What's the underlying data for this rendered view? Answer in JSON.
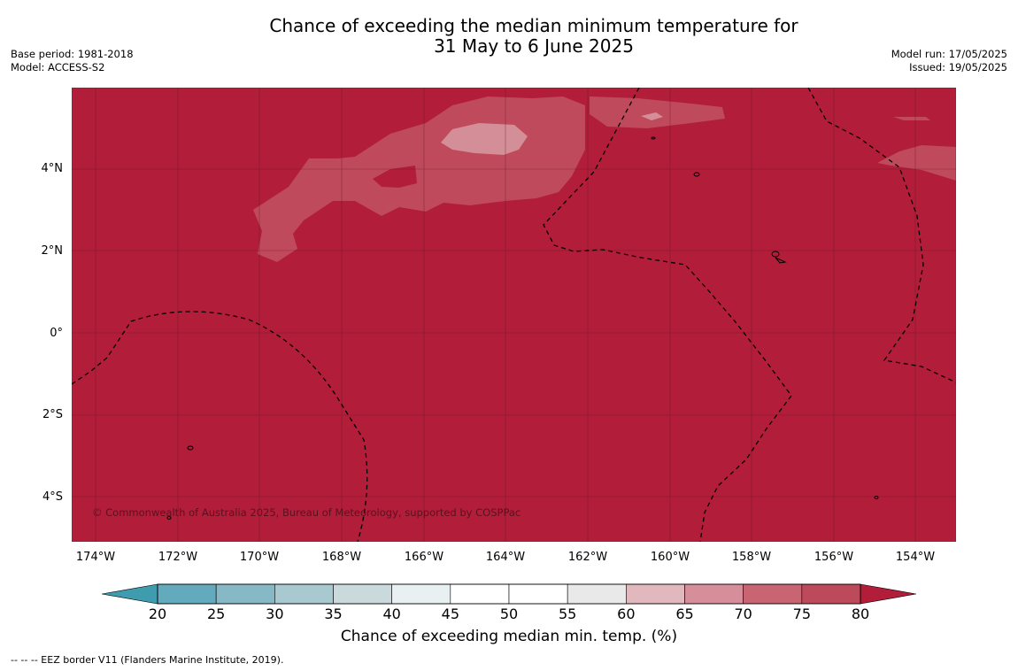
{
  "title_line1": "Chance of exceeding the median minimum temperature for",
  "title_line2": "31 May to 6 June 2025",
  "meta_left": [
    "Base period: 1981-2018",
    "Model: ACCESS-S2"
  ],
  "meta_right": [
    "Model run: 17/05/2025",
    "Issued: 19/05/2025"
  ],
  "lat_labels": [
    "4°N",
    "2°N",
    "0°",
    "2°S",
    "4°S"
  ],
  "lon_labels": [
    "174°W",
    "172°W",
    "170°W",
    "168°W",
    "166°W",
    "164°W",
    "162°W",
    "160°W",
    "158°W",
    "156°W",
    "154°W"
  ],
  "copyright": "© Commonwealth of Australia 2025, Bureau of Meteorology, supported by COSPPac",
  "colorbar": {
    "ticks": [
      "20",
      "25",
      "30",
      "35",
      "40",
      "45",
      "50",
      "55",
      "60",
      "65",
      "70",
      "75",
      "80"
    ],
    "colors": [
      "#63aabd",
      "#86b8c5",
      "#a8c9cf",
      "#cad9dc",
      "#e8f0f1",
      "#ffffff",
      "#ffffff",
      "#e9e9e9",
      "#e2b8bf",
      "#d68e9a",
      "#c96573",
      "#bd4a5a"
    ],
    "low_color": "#3f9cae",
    "high_color": "#b21d3a",
    "label": "Chance of exceeding median min. temp. (%)"
  },
  "footer": "--  --  -- EEZ border V11 (Flanders Marine Institute, 2019).",
  "map_colors": {
    "background": "#b21d3a",
    "level_75_80": "#bf4a5b",
    "level_65_70": "#d48e98"
  }
}
